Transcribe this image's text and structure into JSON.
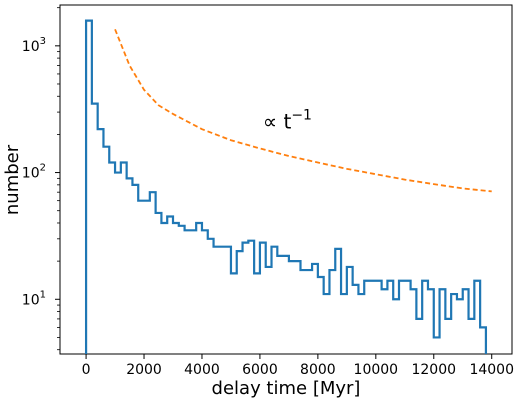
{
  "chart_data": {
    "type": "histogram-step",
    "xlabel": "delay time [Myr]",
    "ylabel": "number",
    "xlim": [
      -900,
      14700
    ],
    "ylim": [
      3.7,
      2100
    ],
    "yscale": "log",
    "grid": false,
    "x_ticks": [
      {
        "value": 0,
        "label": "0"
      },
      {
        "value": 2000,
        "label": "2000"
      },
      {
        "value": 4000,
        "label": "4000"
      },
      {
        "value": 6000,
        "label": "6000"
      },
      {
        "value": 8000,
        "label": "8000"
      },
      {
        "value": 10000,
        "label": "10000"
      },
      {
        "value": 12000,
        "label": "12000"
      },
      {
        "value": 14000,
        "label": "14000"
      }
    ],
    "y_ticks": [
      {
        "value": 10,
        "base": "10",
        "exp": "1"
      },
      {
        "value": 100,
        "base": "10",
        "exp": "2"
      },
      {
        "value": 1000,
        "base": "10",
        "exp": "3"
      }
    ],
    "series": [
      {
        "type": "step-histogram",
        "color": "#1f77b4",
        "bin_edges": [
          0,
          200,
          400,
          600,
          800,
          1000,
          1200,
          1400,
          1600,
          1800,
          2000,
          2200,
          2400,
          2600,
          2800,
          3000,
          3200,
          3400,
          3600,
          3800,
          4000,
          4200,
          4400,
          4600,
          4800,
          5000,
          5200,
          5400,
          5600,
          5800,
          6000,
          6200,
          6400,
          6600,
          6800,
          7000,
          7200,
          7400,
          7600,
          7800,
          8000,
          8200,
          8400,
          8600,
          8800,
          9000,
          9200,
          9400,
          9600,
          9800,
          10000,
          10200,
          10400,
          10600,
          10800,
          11000,
          11200,
          11400,
          11600,
          11800,
          12000,
          12200,
          12400,
          12600,
          12800,
          13000,
          13200,
          13400,
          13600,
          13800
        ],
        "counts": [
          1580,
          350,
          220,
          160,
          120,
          100,
          120,
          90,
          80,
          60,
          60,
          70,
          48,
          40,
          45,
          40,
          38,
          35,
          35,
          40,
          35,
          30,
          26,
          26,
          26,
          16,
          24,
          28,
          29,
          16,
          28,
          18,
          26,
          22,
          22,
          20,
          20,
          17,
          17,
          19,
          15,
          11,
          17,
          25,
          11,
          18,
          13,
          11,
          14,
          14,
          14,
          12,
          14,
          10,
          14,
          14,
          12,
          7,
          14,
          12,
          5,
          12,
          7,
          11,
          10,
          12,
          7,
          14,
          6
        ],
        "baseline": 3.7
      },
      {
        "type": "line",
        "style": "dashed",
        "color": "#ff7f0e",
        "x": [
          1000,
          1500,
          2000,
          2500,
          3000,
          4000,
          5000,
          6000,
          7000,
          8000,
          9000,
          10000,
          11000,
          12000,
          13000,
          14000
        ],
        "y": [
          1350,
          700,
          450,
          340,
          290,
          220,
          180,
          155,
          135,
          120,
          107,
          97,
          88,
          81,
          75,
          71
        ]
      }
    ],
    "annotation": {
      "prefix": "∝ t",
      "superscript": "−1",
      "x": 6100,
      "y": 200
    }
  }
}
